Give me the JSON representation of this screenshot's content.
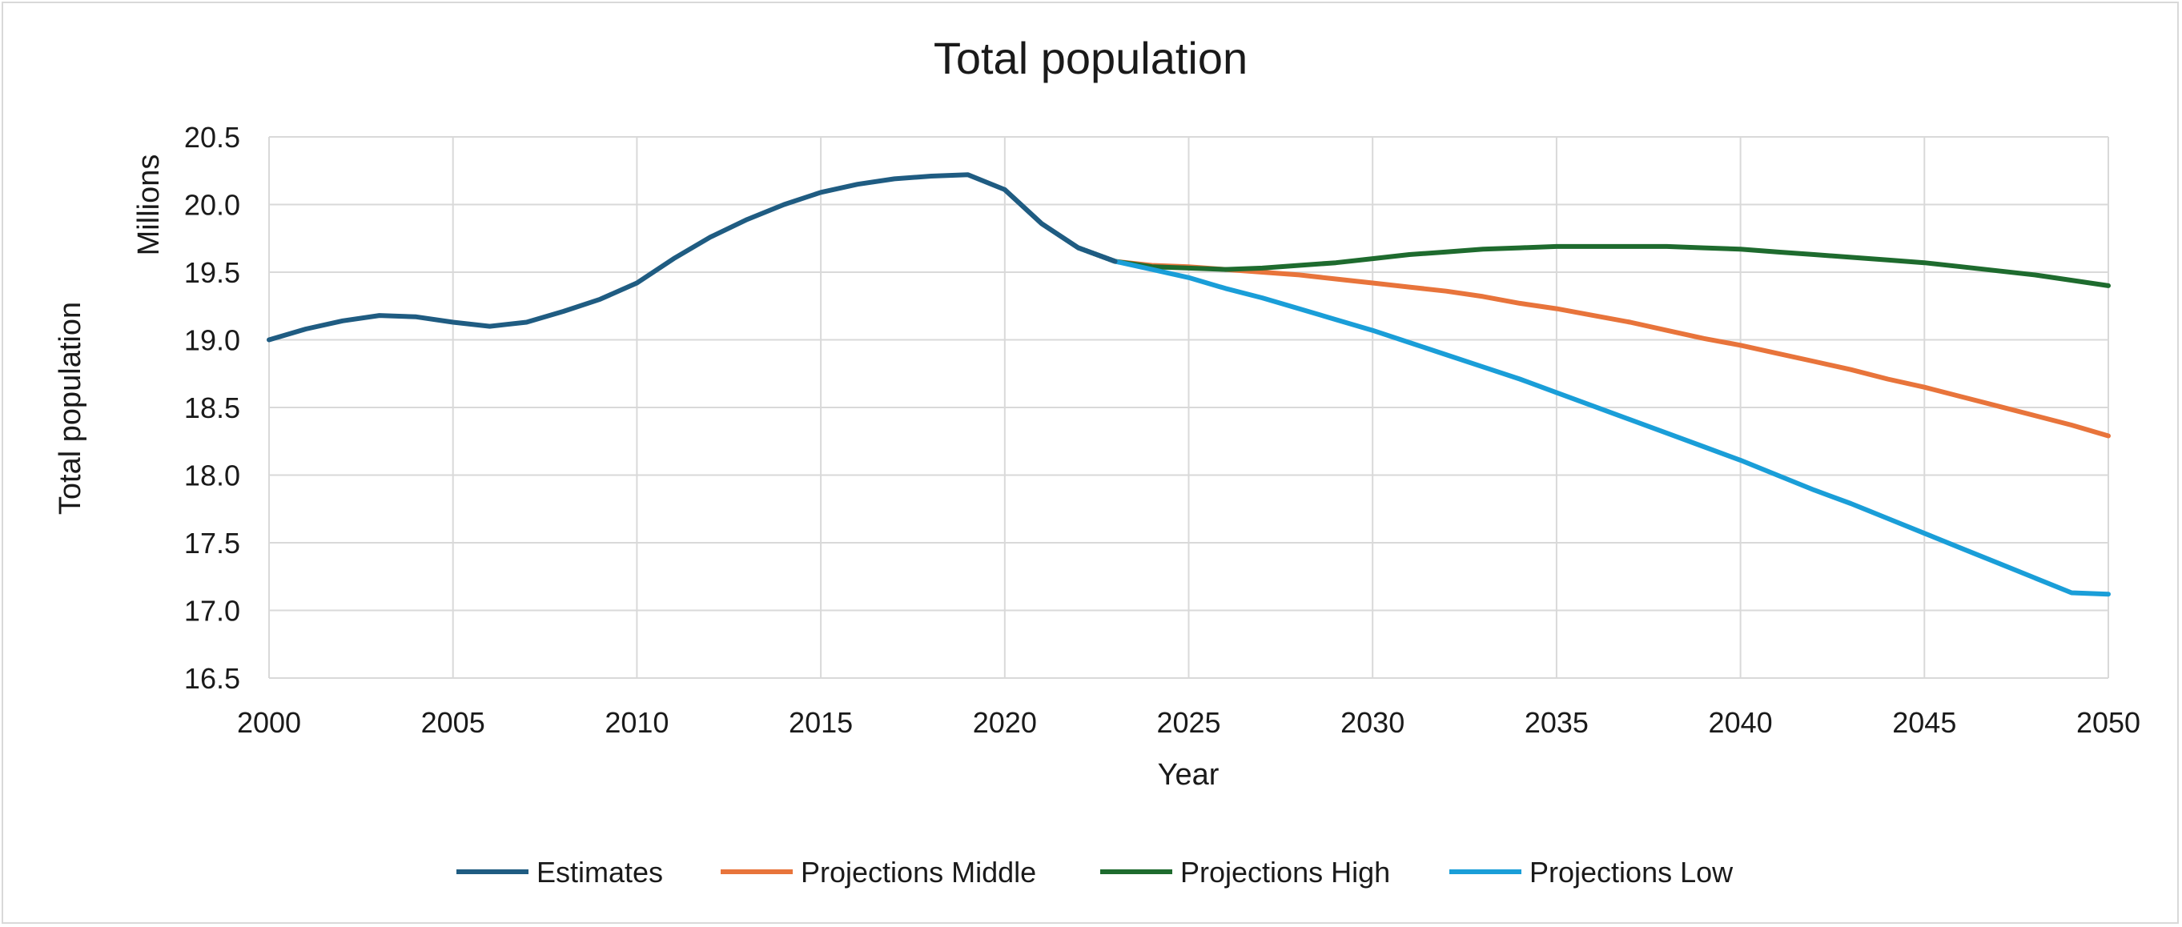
{
  "chart_data": {
    "type": "line",
    "title": "Total population",
    "xlabel": "Year",
    "ylabel": "Total population",
    "y_unit_label": "Millions",
    "xlim": [
      2000,
      2050
    ],
    "ylim": [
      16.5,
      20.5
    ],
    "x_ticks": [
      "2000",
      "2005",
      "2010",
      "2015",
      "2020",
      "2025",
      "2030",
      "2035",
      "2040",
      "2045",
      "2050"
    ],
    "y_ticks": [
      "16.5",
      "17.0",
      "17.5",
      "18.0",
      "18.5",
      "19.0",
      "19.5",
      "20.0",
      "20.5"
    ],
    "grid": true,
    "legend_position": "bottom",
    "series": [
      {
        "name": "Estimates",
        "color": "#1f5c82",
        "x": [
          2000,
          2001,
          2002,
          2003,
          2004,
          2005,
          2006,
          2007,
          2008,
          2009,
          2010,
          2011,
          2012,
          2013,
          2014,
          2015,
          2016,
          2017,
          2018,
          2019,
          2020,
          2021,
          2022,
          2023
        ],
        "values": [
          19.0,
          19.08,
          19.14,
          19.18,
          19.17,
          19.13,
          19.1,
          19.13,
          19.21,
          19.3,
          19.42,
          19.6,
          19.76,
          19.89,
          20.0,
          20.09,
          20.15,
          20.19,
          20.21,
          20.22,
          20.11,
          19.86,
          19.68,
          19.58
        ]
      },
      {
        "name": "Projections Middle",
        "color": "#e8743b",
        "x": [
          2022,
          2023,
          2024,
          2025,
          2026,
          2027,
          2028,
          2029,
          2030,
          2031,
          2032,
          2033,
          2034,
          2035,
          2036,
          2037,
          2038,
          2039,
          2040,
          2041,
          2042,
          2043,
          2044,
          2045,
          2046,
          2047,
          2048,
          2049,
          2050
        ],
        "values": [
          19.68,
          19.58,
          19.55,
          19.54,
          19.52,
          19.5,
          19.48,
          19.45,
          19.42,
          19.39,
          19.36,
          19.32,
          19.27,
          19.23,
          19.18,
          19.13,
          19.07,
          19.01,
          18.96,
          18.9,
          18.84,
          18.78,
          18.71,
          18.65,
          18.58,
          18.51,
          18.44,
          18.37,
          18.29
        ]
      },
      {
        "name": "Projections High",
        "color": "#1e6b2e",
        "x": [
          2022,
          2023,
          2024,
          2025,
          2026,
          2027,
          2028,
          2029,
          2030,
          2031,
          2032,
          2033,
          2034,
          2035,
          2036,
          2037,
          2038,
          2039,
          2040,
          2041,
          2042,
          2043,
          2044,
          2045,
          2046,
          2047,
          2048,
          2049,
          2050
        ],
        "values": [
          19.68,
          19.58,
          19.54,
          19.53,
          19.52,
          19.53,
          19.55,
          19.57,
          19.6,
          19.63,
          19.65,
          19.67,
          19.68,
          19.69,
          19.69,
          19.69,
          19.69,
          19.68,
          19.67,
          19.65,
          19.63,
          19.61,
          19.59,
          19.57,
          19.54,
          19.51,
          19.48,
          19.44,
          19.4
        ]
      },
      {
        "name": "Projections Low",
        "color": "#1a9ed8",
        "x": [
          2022,
          2023,
          2024,
          2025,
          2026,
          2027,
          2028,
          2029,
          2030,
          2031,
          2032,
          2033,
          2034,
          2035,
          2036,
          2037,
          2038,
          2039,
          2040,
          2041,
          2042,
          2043,
          2044,
          2045,
          2046,
          2047,
          2048,
          2049,
          2050
        ],
        "values": [
          19.68,
          19.58,
          19.52,
          19.46,
          19.38,
          19.31,
          19.23,
          19.15,
          19.07,
          18.98,
          18.89,
          18.8,
          18.71,
          18.61,
          18.51,
          18.41,
          18.31,
          18.21,
          18.11,
          18.0,
          17.89,
          17.79,
          17.68,
          17.57,
          17.46,
          17.35,
          17.24,
          17.13,
          17.12
        ]
      }
    ]
  }
}
